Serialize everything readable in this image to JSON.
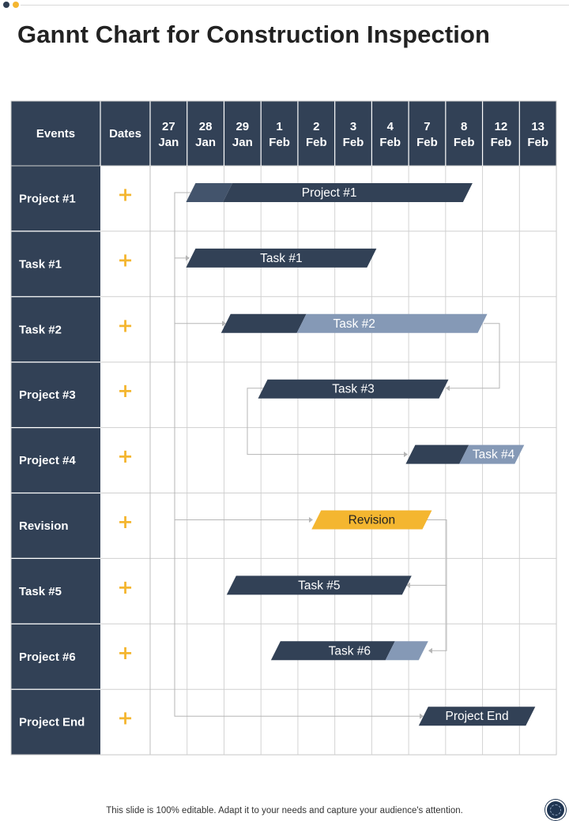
{
  "page": {
    "title": "Gannt Chart for Construction Inspection",
    "footer": "This slide is 100% editable. Adapt it to your needs and capture your audience's attention."
  },
  "colors": {
    "dark": "#324156",
    "light": "#8599b6",
    "accent": "#f4b630",
    "plus": "#f4b630"
  },
  "chart_data": {
    "type": "gantt",
    "headers": {
      "events": "Events",
      "dates": "Dates"
    },
    "columns": [
      {
        "top": "27",
        "bottom": "Jan"
      },
      {
        "top": "28",
        "bottom": "Jan"
      },
      {
        "top": "29",
        "bottom": "Jan"
      },
      {
        "top": "1",
        "bottom": "Feb"
      },
      {
        "top": "2",
        "bottom": "Feb"
      },
      {
        "top": "3",
        "bottom": "Feb"
      },
      {
        "top": "4",
        "bottom": "Feb"
      },
      {
        "top": "7",
        "bottom": "Feb"
      },
      {
        "top": "8",
        "bottom": "Feb"
      },
      {
        "top": "12",
        "bottom": "Feb"
      },
      {
        "top": "13",
        "bottom": "Feb"
      }
    ],
    "rows": [
      {
        "event": "Project #1",
        "bar": "Project #1",
        "start": 1.1,
        "end": 8.6,
        "split": 2.1,
        "lead": "accentDark",
        "tail": "dark"
      },
      {
        "event": "Task #1",
        "bar": "Task #1",
        "start": 1.1,
        "end": 6.0,
        "split": null,
        "lead": "dark",
        "tail": "dark"
      },
      {
        "event": "Task #2",
        "bar": "Task #2",
        "start": 2.05,
        "end": 9.0,
        "split": 4.1,
        "lead": "dark",
        "tail": "light"
      },
      {
        "event": "Project #3",
        "bar": "Task #3",
        "start": 3.05,
        "end": 7.95,
        "split": null,
        "lead": "dark",
        "tail": "dark"
      },
      {
        "event": "Project #4",
        "bar": "Task #4",
        "start": 7.05,
        "end": 10.0,
        "split": 8.5,
        "lead": "dark",
        "tail": "light"
      },
      {
        "event": "Revision",
        "bar": "Revision",
        "start": 4.5,
        "end": 7.5,
        "split": null,
        "lead": "accent",
        "tail": "accent"
      },
      {
        "event": "Task #5",
        "bar": "Task #5",
        "start": 2.2,
        "end": 6.95,
        "split": null,
        "lead": "dark",
        "tail": "dark"
      },
      {
        "event": "Project #6",
        "bar": "Task #6",
        "start": 3.4,
        "end": 7.4,
        "split": 6.5,
        "lead": "dark",
        "tail": "light"
      },
      {
        "event": "Project End",
        "bar": "Project End",
        "start": 7.4,
        "end": 10.3,
        "split": null,
        "lead": "dark",
        "tail": "dark"
      }
    ],
    "plus_symbol": "+"
  }
}
